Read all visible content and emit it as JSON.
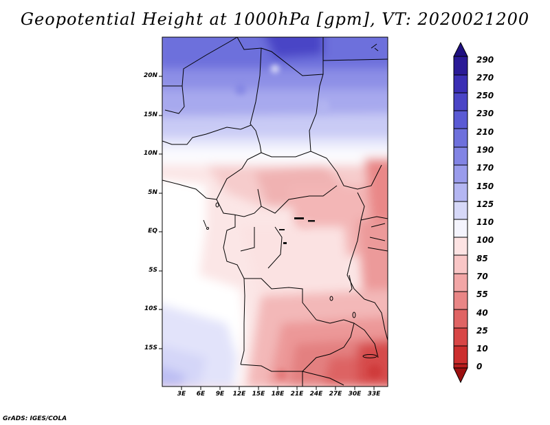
{
  "title": "Geopotential Height at 1000hPa [gpm], VT: 2020021200",
  "credit": "GrADS: IGES/COLA",
  "chart_data": {
    "type": "heatmap",
    "variable": "Geopotential Height at 1000hPa",
    "units": "gpm",
    "valid_time": "2020021200",
    "lon_range": [
      0,
      35
    ],
    "lat_range": [
      -20,
      24
    ],
    "y_ticks": [
      "20N",
      "15N",
      "10N",
      "5N",
      "EQ",
      "5S",
      "10S",
      "15S"
    ],
    "x_ticks": [
      "3E",
      "6E",
      "9E",
      "12E",
      "15E",
      "18E",
      "21E",
      "24E",
      "27E",
      "30E",
      "33E"
    ],
    "colorbar_levels": [
      "290",
      "270",
      "250",
      "230",
      "210",
      "190",
      "170",
      "150",
      "125",
      "110",
      "100",
      "85",
      "70",
      "55",
      "40",
      "25",
      "10",
      "0"
    ],
    "colorbar_colors": [
      "#2a1a96",
      "#3a2eb4",
      "#4a44c6",
      "#5a5ad4",
      "#6e70dc",
      "#8284e4",
      "#9a9cec",
      "#b4b6f2",
      "#d6d8f8",
      "#f4f4fd",
      "#fde3e3",
      "#f9c6c6",
      "#f2a6a6",
      "#e98686",
      "#e06464",
      "#d84646",
      "#cc2e2e",
      "#b81c1c",
      "#9c1010"
    ]
  }
}
